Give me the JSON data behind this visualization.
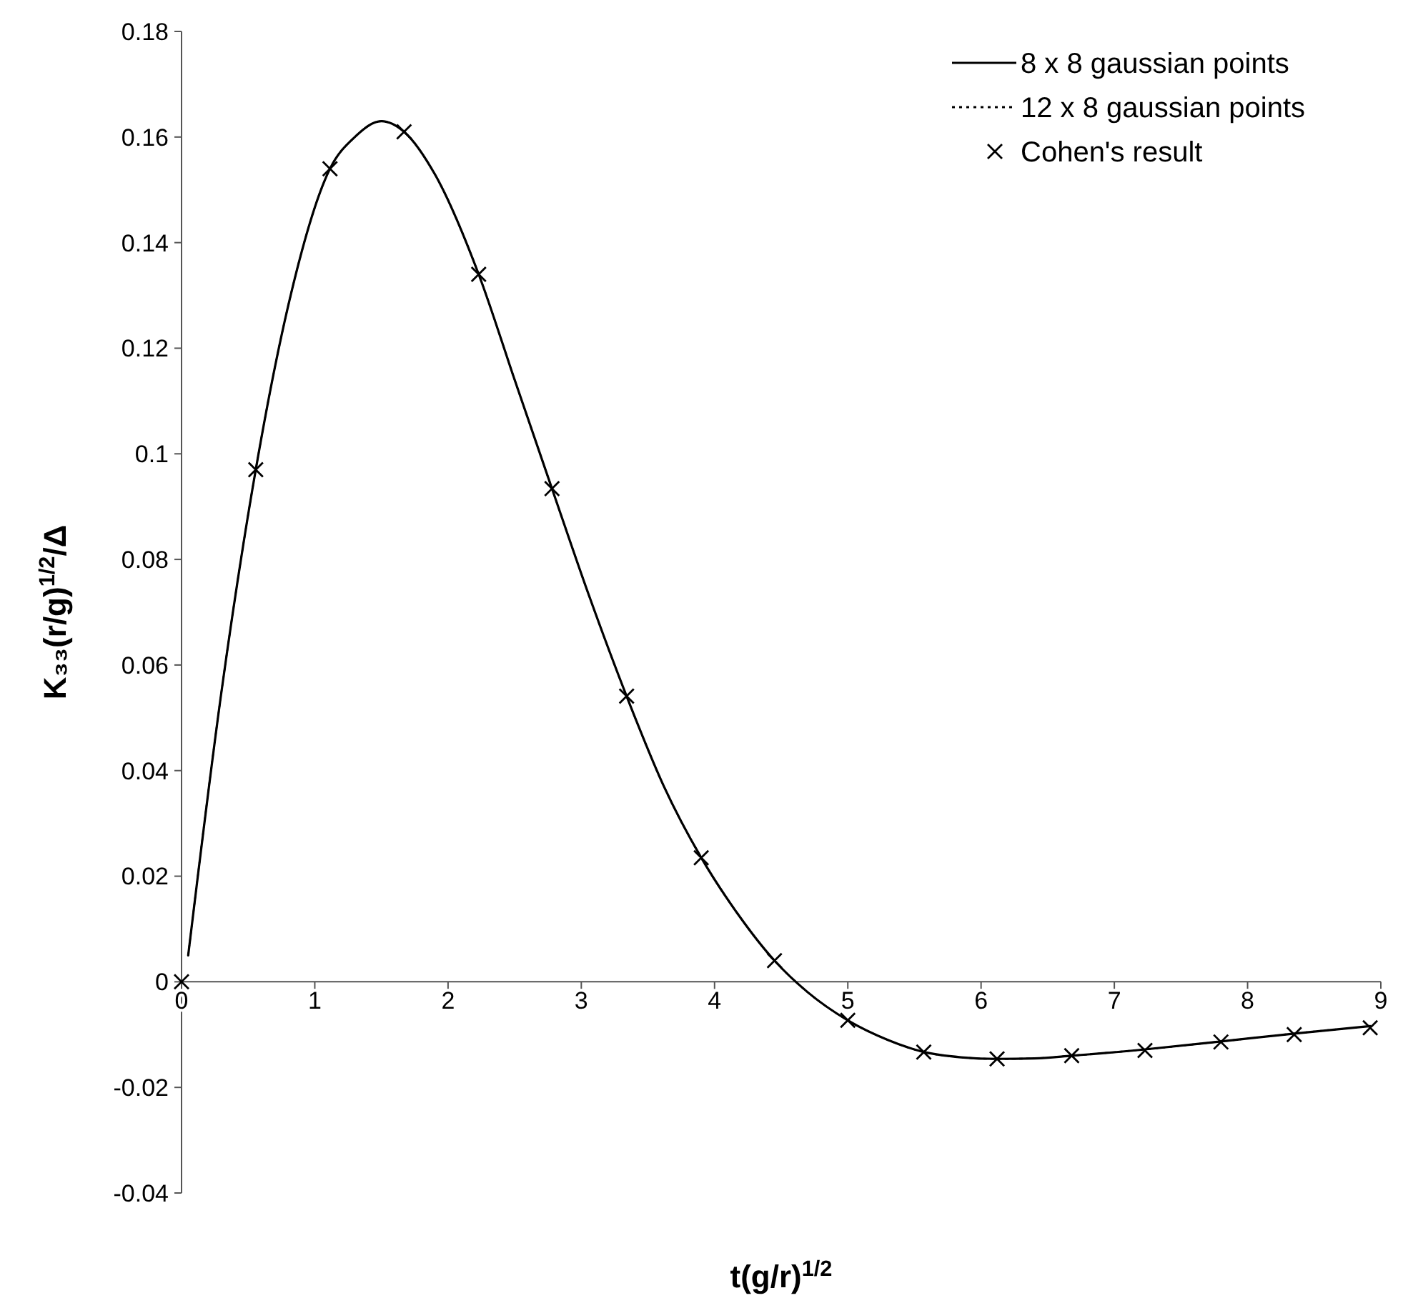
{
  "chart_data": {
    "type": "line",
    "xlabel": "t(g/r)$^{1/2}$",
    "ylabel": "K₃₃(r/g)$^{1/2}$/Δ",
    "xlim": [
      0,
      9
    ],
    "ylim": [
      -0.04,
      0.18
    ],
    "xticks": [
      0,
      1,
      2,
      3,
      4,
      5,
      6,
      7,
      8,
      9
    ],
    "yticks": [
      -0.04,
      -0.02,
      0,
      0.02,
      0.04,
      0.06,
      0.08,
      0.1,
      0.12,
      0.14,
      0.16,
      0.18
    ],
    "grid": false,
    "legend": "top right",
    "series": [
      {
        "name": "8 x 8 gaussian points",
        "line_style": "solid",
        "marker": "none",
        "color": "#000000",
        "x": [
          0.05,
          0.3,
          0.557,
          0.8,
          1.114,
          1.3,
          1.5,
          1.67,
          1.9,
          2.23,
          2.5,
          2.78,
          3.06,
          3.34,
          3.62,
          3.9,
          4.17,
          4.45,
          4.7,
          5.0,
          5.3,
          5.57,
          5.85,
          6.12,
          6.4,
          6.68,
          7.23,
          7.8,
          8.35,
          8.92
        ],
        "values": [
          0.005,
          0.055,
          0.097,
          0.128,
          0.154,
          0.16,
          0.163,
          0.161,
          0.153,
          0.134,
          0.114,
          0.0934,
          0.073,
          0.0541,
          0.037,
          0.0235,
          0.013,
          0.004,
          -0.002,
          -0.0073,
          -0.011,
          -0.0133,
          -0.0143,
          -0.0146,
          -0.0145,
          -0.014,
          -0.0128,
          -0.0113,
          -0.0098,
          -0.0084
        ]
      },
      {
        "name": "12 x 8 gaussian points",
        "line_style": "dotted",
        "marker": "none",
        "color": "#000000",
        "x": [
          0.05,
          0.3,
          0.557,
          0.8,
          1.114,
          1.3,
          1.5,
          1.67,
          1.9,
          2.23,
          2.5,
          2.78,
          3.06,
          3.34,
          3.62,
          3.9,
          4.17,
          4.45,
          4.7,
          5.0,
          5.3,
          5.57,
          5.85,
          6.12,
          6.4,
          6.68,
          7.23,
          7.8,
          8.35,
          8.92
        ],
        "values": [
          0.005,
          0.055,
          0.097,
          0.128,
          0.154,
          0.16,
          0.163,
          0.161,
          0.153,
          0.134,
          0.114,
          0.0934,
          0.073,
          0.0541,
          0.037,
          0.0235,
          0.013,
          0.004,
          -0.002,
          -0.0073,
          -0.011,
          -0.0133,
          -0.0143,
          -0.0146,
          -0.0145,
          -0.014,
          -0.0128,
          -0.0113,
          -0.0098,
          -0.0084
        ]
      },
      {
        "name": "Cohen's result",
        "type": "scatter",
        "marker": "cross",
        "color": "#000000",
        "x": [
          0,
          0.557,
          1.114,
          1.67,
          2.23,
          2.78,
          3.34,
          3.9,
          4.45,
          5.0,
          5.57,
          6.12,
          6.68,
          7.23,
          7.8,
          8.35,
          8.92
        ],
        "values": [
          0,
          0.097,
          0.154,
          0.161,
          0.134,
          0.0934,
          0.0541,
          0.0235,
          0.004,
          -0.0073,
          -0.0133,
          -0.0146,
          -0.014,
          -0.013,
          -0.0114,
          -0.01,
          -0.0087
        ]
      }
    ]
  }
}
